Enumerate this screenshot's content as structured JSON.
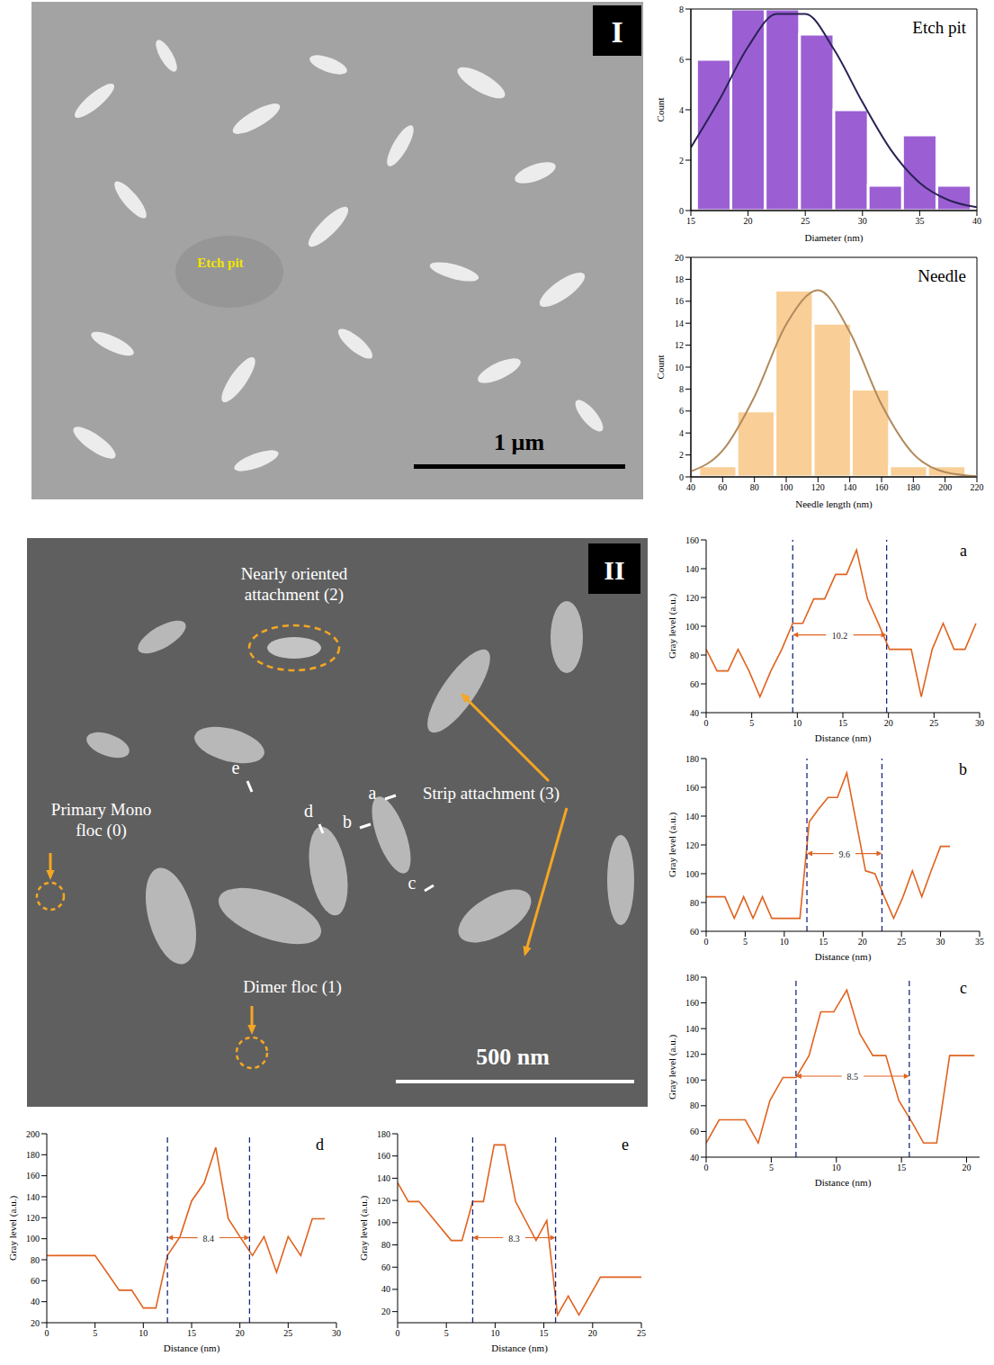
{
  "images": [
    {
      "label": "I",
      "annotations": [
        "Etch pit"
      ],
      "scale_bar": "1 µm"
    },
    {
      "label": "II",
      "annotations": [
        "Nearly oriented attachment (2)",
        "Strip attachment (3)",
        "Primary Mono floc (0)",
        "Dimer floc (1)"
      ],
      "profile_marks": [
        "e",
        "d",
        "a",
        "b",
        "c"
      ],
      "scale_bar": "500 nm"
    }
  ],
  "chart_data": [
    {
      "type": "histogram",
      "title": "Etch pit",
      "bins": [
        15.5,
        18.5,
        21.5,
        24.5,
        27.5,
        30.5,
        33.5,
        36.5,
        39.5
      ],
      "values": [
        6,
        8,
        8,
        7,
        4,
        1,
        3,
        1
      ],
      "color": "#9b5fd3",
      "xlim": [
        15,
        40
      ],
      "xticks": [
        15,
        20,
        25,
        30,
        35,
        40
      ],
      "ylim": [
        0,
        8
      ],
      "yticks": [
        0,
        2,
        4,
        6,
        8
      ],
      "xlabel": "Diameter (nm)",
      "ylabel": "Count",
      "fit": {
        "x": [
          15,
          17.5,
          20,
          22.5,
          25,
          27.5,
          30,
          32.5,
          35,
          37.5,
          40
        ],
        "values": [
          2.5,
          4.4,
          6.5,
          7.8,
          7.8,
          6.4,
          4.3,
          2.4,
          1.1,
          0.42,
          0.13
        ],
        "color": "#2a2155"
      }
    },
    {
      "type": "histogram",
      "title": "Needle",
      "bins": [
        45,
        69,
        93,
        117,
        141,
        165,
        189,
        213
      ],
      "values": [
        1,
        6,
        17,
        14,
        8,
        1,
        1
      ],
      "color": "#f9cf97",
      "xlim": [
        40,
        220
      ],
      "xticks": [
        40,
        60,
        80,
        100,
        120,
        140,
        160,
        180,
        200,
        220
      ],
      "ylim": [
        0,
        20
      ],
      "yticks": [
        0,
        2,
        4,
        6,
        8,
        10,
        12,
        14,
        16,
        18,
        20
      ],
      "xlabel": "Needle length (nm)",
      "ylabel": "Count",
      "fit": {
        "x": [
          40,
          60,
          80,
          100,
          120,
          140,
          160,
          180,
          200,
          220
        ],
        "values": [
          0.5,
          2.4,
          7.3,
          13.9,
          17,
          13.2,
          6.6,
          2.1,
          0.43,
          0.06
        ],
        "color": "#b18a5c"
      }
    },
    {
      "type": "line",
      "title": "a",
      "x": [
        0,
        1.2,
        2.4,
        3.5,
        4.7,
        5.9,
        7.1,
        8.3,
        9.5,
        10.6,
        11.8,
        13,
        14.2,
        15.4,
        16.5,
        17.7,
        18.9,
        20.1,
        21.3,
        22.5,
        23.6,
        24.8,
        26,
        27.2,
        28.4,
        29.6
      ],
      "values": [
        84,
        69,
        69,
        84,
        69,
        51,
        69,
        84,
        102,
        102,
        119,
        119,
        136,
        136,
        153,
        119,
        102,
        84,
        84,
        84,
        51,
        84,
        102,
        84,
        84,
        102
      ],
      "color": "#e0631f",
      "xlim": [
        0,
        30
      ],
      "xticks": [
        0,
        5,
        10,
        15,
        20,
        25,
        30
      ],
      "ylim": [
        40,
        160
      ],
      "yticks": [
        40,
        60,
        80,
        100,
        120,
        140,
        160
      ],
      "xlabel": "Distance (nm)",
      "ylabel": "Gray level (a.u.)",
      "bounds": [
        9.5,
        19.8
      ],
      "width": 10.2
    },
    {
      "type": "line",
      "title": "b",
      "x": [
        0,
        1.2,
        2.4,
        3.6,
        4.8,
        6,
        7.2,
        8.4,
        9.6,
        10.8,
        12,
        13.2,
        14.4,
        15.6,
        16.8,
        18,
        19.2,
        20.4,
        21.6,
        22.8,
        24,
        25.2,
        26.4,
        27.6,
        28.8,
        30,
        31.2
      ],
      "values": [
        84,
        84,
        84,
        69,
        84,
        69,
        84,
        69,
        69,
        69,
        69,
        136,
        145,
        153,
        153,
        170,
        136,
        102,
        100,
        84,
        69,
        84,
        102,
        84,
        102,
        119,
        119
      ],
      "color": "#e0631f",
      "xlim": [
        0,
        35
      ],
      "xticks": [
        0,
        5,
        10,
        15,
        20,
        25,
        30,
        35
      ],
      "ylim": [
        60,
        180
      ],
      "yticks": [
        60,
        80,
        100,
        120,
        140,
        160,
        180
      ],
      "xlabel": "Distance (nm)",
      "ylabel": "Gray level (a.u.)",
      "bounds": [
        12.9,
        22.5
      ],
      "width": 9.6
    },
    {
      "type": "line",
      "title": "c",
      "x": [
        0,
        1,
        2,
        3,
        4,
        4.9,
        5.9,
        6.9,
        7.9,
        8.8,
        9.8,
        10.8,
        11.8,
        12.8,
        13.8,
        14.8,
        15.7,
        16.7,
        17.7,
        18.7,
        19.7,
        20.6
      ],
      "values": [
        51,
        69,
        69,
        69,
        51,
        84,
        102,
        102,
        119,
        153,
        153,
        170,
        136,
        119,
        119,
        84,
        69,
        51,
        51,
        119,
        119,
        119
      ],
      "color": "#e0631f",
      "xlim": [
        0,
        21
      ],
      "xticks": [
        0,
        5,
        10,
        15,
        20
      ],
      "ylim": [
        40,
        180
      ],
      "yticks": [
        40,
        60,
        80,
        100,
        120,
        140,
        160,
        180
      ],
      "xlabel": "Distance (nm)",
      "ylabel": "Gray level (a.u.)",
      "bounds": [
        6.9,
        15.6
      ],
      "width": 8.5
    },
    {
      "type": "line",
      "title": "d",
      "x": [
        0,
        5,
        6.3,
        7.5,
        8.8,
        10,
        11.3,
        12.5,
        13.8,
        15,
        16.3,
        17.5,
        18.8,
        20,
        21.3,
        22.5,
        23.8,
        25,
        26.3,
        27.5,
        28.8
      ],
      "values": [
        84,
        84,
        67,
        51,
        51,
        34,
        34,
        84,
        102,
        136,
        153,
        187,
        119,
        102,
        84,
        102,
        68,
        102,
        84,
        119,
        119
      ],
      "color": "#e0631f",
      "xlim": [
        0,
        30
      ],
      "xticks": [
        0,
        5,
        10,
        15,
        20,
        25,
        30
      ],
      "ylim": [
        20,
        200
      ],
      "yticks": [
        20,
        40,
        60,
        80,
        100,
        120,
        140,
        160,
        180,
        200
      ],
      "xlabel": "Distance (nm)",
      "ylabel": "Gray level (a.u.)",
      "bounds": [
        12.5,
        21
      ],
      "width": 8.4
    },
    {
      "type": "line",
      "title": "e",
      "x": [
        0,
        1.1,
        2.2,
        5.5,
        6.6,
        7.7,
        8.8,
        9.9,
        11,
        12.1,
        14.2,
        15.3,
        16.4,
        17.5,
        18.6,
        20.8,
        25
      ],
      "values": [
        136,
        119,
        119,
        84,
        84,
        119,
        119,
        170,
        170,
        119,
        84,
        102,
        17,
        34,
        17,
        51,
        51
      ],
      "color": "#e0631f",
      "xlim": [
        0,
        25
      ],
      "xticks": [
        0,
        5,
        10,
        15,
        20,
        25
      ],
      "ylim": [
        10,
        180
      ],
      "yticks": [
        20,
        40,
        60,
        80,
        100,
        120,
        140,
        160,
        180
      ],
      "xlabel": "Distance (nm)",
      "ylabel": "Gray level (a.u.)",
      "bounds": [
        7.7,
        16.2
      ],
      "width": 8.3
    }
  ]
}
